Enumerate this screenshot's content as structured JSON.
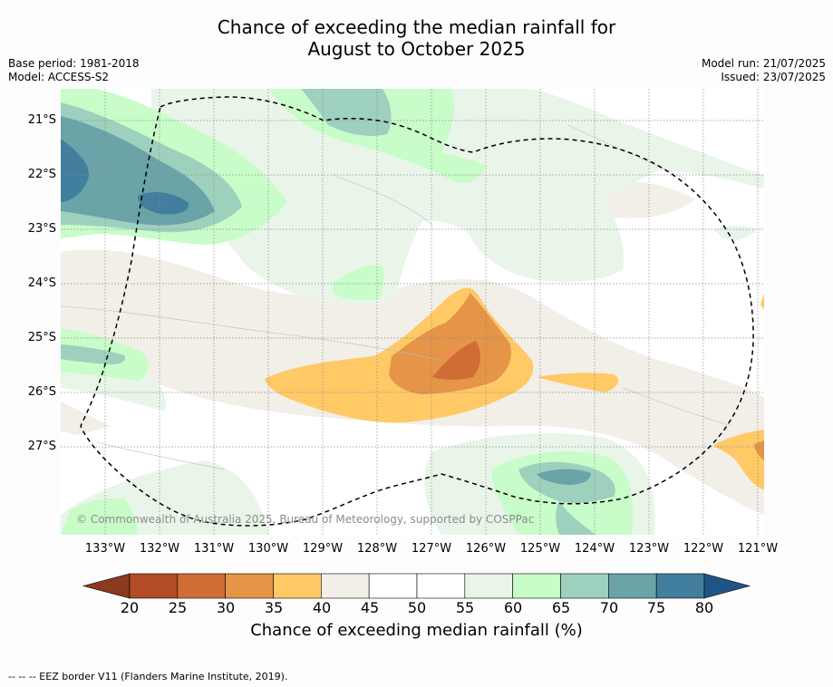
{
  "header": {
    "title_line1": "Chance of exceeding the median rainfall for",
    "title_line2": "August to October 2025",
    "base_period": "Base period: 1981-2018",
    "model": "Model: ACCESS-S2",
    "model_run": "Model run: 21/07/2025",
    "issued": "Issued: 23/07/2025"
  },
  "map": {
    "lat_labels": [
      "21°S",
      "22°S",
      "23°S",
      "24°S",
      "25°S",
      "26°S",
      "27°S"
    ],
    "lon_labels": [
      "133°W",
      "132°W",
      "131°W",
      "130°W",
      "129°W",
      "128°W",
      "127°W",
      "126°W",
      "125°W",
      "124°W",
      "123°W",
      "122°W",
      "121°W"
    ],
    "copyright": "© Commonwealth of Australia 2025, Bureau of Meteorology, supported by COSPPac"
  },
  "colorbar": {
    "ticks": [
      "20",
      "25",
      "30",
      "35",
      "40",
      "45",
      "50",
      "55",
      "60",
      "65",
      "70",
      "75",
      "80"
    ],
    "colors": [
      "#8b3a20",
      "#b24c27",
      "#cf6d35",
      "#e59448",
      "#ffc966",
      "#f2eee8",
      "#ffffff",
      "#ffffff",
      "#e9f5e9",
      "#c8fcc8",
      "#9ed0be",
      "#6aa3a8",
      "#427e9d",
      "#1f5585"
    ],
    "label": "Chance of exceeding median rainfall (%)"
  },
  "footer": {
    "legend_text": "--  --  -- EEZ border V11 (Flanders Marine Institute, 2019)."
  }
}
